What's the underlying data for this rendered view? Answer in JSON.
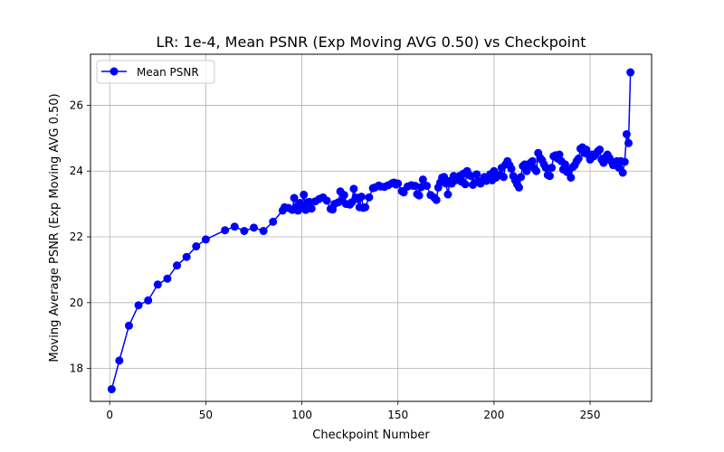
{
  "chart_data": {
    "type": "line",
    "title": "LR: 1e-4, Mean PSNR (Exp Moving AVG 0.50) vs Checkpoint",
    "xlabel": "Checkpoint Number",
    "ylabel": "Moving Average PSNR (Exp Moving AVG 0.50)",
    "xlim": [
      -10,
      282
    ],
    "ylim": [
      17.0,
      27.55
    ],
    "xticks": [
      0,
      50,
      100,
      150,
      200,
      250
    ],
    "yticks": [
      18,
      20,
      22,
      24,
      26
    ],
    "grid": true,
    "legend_position": "top-left",
    "series": [
      {
        "name": "Mean PSNR",
        "color": "#0000ff",
        "marker": "circle",
        "x": [
          1,
          5,
          10,
          15,
          20,
          25,
          30,
          35,
          40,
          45,
          50,
          60,
          65,
          70,
          75,
          80,
          85,
          90,
          91,
          93,
          95,
          96,
          97,
          98,
          99,
          100,
          101,
          102,
          103,
          104,
          105,
          107,
          109,
          111,
          113,
          115,
          116,
          117,
          119,
          120,
          121,
          122,
          123,
          125,
          126,
          127,
          128,
          129,
          130,
          131,
          132,
          133,
          135,
          137,
          138,
          140,
          141,
          143,
          145,
          147,
          148,
          149,
          150,
          152,
          153,
          155,
          157,
          158,
          159,
          160,
          161,
          162,
          163,
          165,
          167,
          169,
          170,
          171,
          172,
          173,
          174,
          175,
          176,
          177,
          178,
          179,
          180,
          181,
          182,
          183,
          184,
          185,
          186,
          187,
          188,
          189,
          190,
          191,
          192,
          193,
          194,
          195,
          196,
          197,
          198,
          199,
          200,
          201,
          202,
          203,
          204,
          205,
          206,
          207,
          208,
          209,
          210,
          211,
          212,
          213,
          214,
          215,
          216,
          217,
          218,
          219,
          220,
          221,
          222,
          223,
          224,
          225,
          226,
          227,
          228,
          229,
          230,
          231,
          232,
          233,
          234,
          235,
          236,
          237,
          238,
          239,
          240,
          241,
          242,
          243,
          244,
          245,
          246,
          247,
          248,
          249,
          250,
          251,
          252,
          253,
          254,
          255,
          256,
          257,
          258,
          259,
          260,
          261,
          262,
          263,
          264,
          265,
          266,
          267,
          268,
          269,
          270,
          271
        ],
        "values": [
          17.37,
          18.24,
          19.3,
          19.92,
          20.07,
          20.55,
          20.73,
          21.13,
          21.39,
          21.71,
          21.92,
          22.2,
          22.31,
          22.18,
          22.28,
          22.18,
          22.46,
          22.8,
          22.9,
          22.88,
          22.82,
          23.18,
          22.9,
          22.8,
          23.03,
          22.93,
          23.28,
          22.82,
          23.05,
          23.06,
          22.86,
          23.08,
          23.15,
          23.2,
          23.1,
          22.85,
          22.83,
          23.0,
          23.05,
          23.38,
          23.1,
          23.27,
          23.0,
          22.98,
          23.05,
          23.46,
          23.2,
          23.15,
          22.9,
          23.22,
          22.88,
          22.9,
          23.2,
          23.48,
          23.5,
          23.56,
          23.53,
          23.52,
          23.57,
          23.63,
          23.65,
          23.59,
          23.62,
          23.39,
          23.35,
          23.53,
          23.57,
          23.55,
          23.55,
          23.3,
          23.26,
          23.51,
          23.74,
          23.55,
          23.27,
          23.19,
          23.12,
          23.5,
          23.65,
          23.8,
          23.82,
          23.62,
          23.29,
          23.7,
          23.62,
          23.85,
          23.72,
          23.78,
          23.85,
          23.68,
          23.92,
          23.6,
          24.0,
          23.88,
          23.85,
          23.58,
          23.65,
          23.9,
          23.68,
          23.62,
          23.72,
          23.82,
          23.7,
          23.78,
          23.9,
          23.72,
          24.0,
          23.8,
          23.86,
          23.88,
          24.1,
          23.82,
          24.2,
          24.3,
          24.18,
          24.07,
          23.85,
          23.72,
          23.6,
          23.5,
          23.82,
          24.15,
          24.2,
          24.0,
          24.18,
          24.25,
          24.3,
          24.08,
          24.0,
          24.55,
          24.4,
          24.33,
          24.2,
          24.1,
          23.88,
          23.85,
          24.1,
          24.45,
          24.48,
          24.38,
          24.5,
          24.3,
          24.05,
          24.2,
          23.97,
          24.02,
          23.8,
          24.12,
          24.18,
          24.3,
          24.38,
          24.68,
          24.72,
          24.55,
          24.65,
          24.5,
          24.35,
          24.5,
          24.45,
          24.52,
          24.6,
          24.65,
          24.35,
          24.25,
          24.42,
          24.5,
          24.4,
          24.3,
          24.18,
          24.22,
          24.3,
          24.1,
          24.3,
          23.95,
          24.28,
          25.12,
          24.85,
          27.0
        ]
      }
    ]
  }
}
